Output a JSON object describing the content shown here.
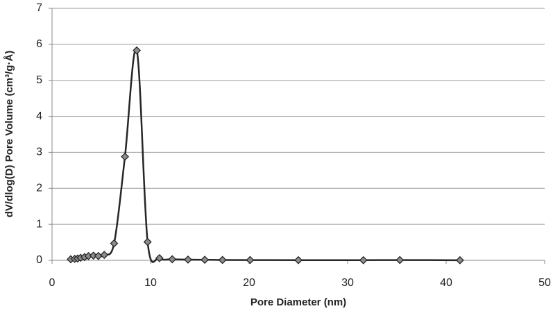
{
  "chart_data": {
    "type": "line",
    "xlabel": "Pore Diameter (nm)",
    "ylabel": "dV/dlog(D) Pore Volume (cm³/g·Å)",
    "x": [
      1.9,
      2.3,
      2.6,
      2.9,
      3.3,
      3.7,
      4.2,
      4.7,
      5.3,
      6.3,
      7.4,
      8.6,
      9.7,
      10.9,
      12.2,
      13.8,
      15.5,
      17.3,
      20.1,
      25.0,
      31.6,
      35.3,
      41.4
    ],
    "values": [
      0.03,
      0.04,
      0.05,
      0.07,
      0.09,
      0.12,
      0.13,
      0.12,
      0.15,
      0.47,
      2.88,
      5.83,
      0.51,
      0.06,
      0.03,
      0.02,
      0.015,
      0.01,
      0.008,
      0.005,
      0.004,
      0.008,
      0.003
    ],
    "color": "#262626",
    "marker_color": "#8c8c8c",
    "xlim": [
      0,
      50
    ],
    "xticks": [
      0,
      10,
      20,
      30,
      40,
      50
    ],
    "ylim": [
      0,
      7
    ],
    "yticks": [
      0,
      1,
      2,
      3,
      4,
      5,
      6,
      7
    ],
    "grid": true
  }
}
